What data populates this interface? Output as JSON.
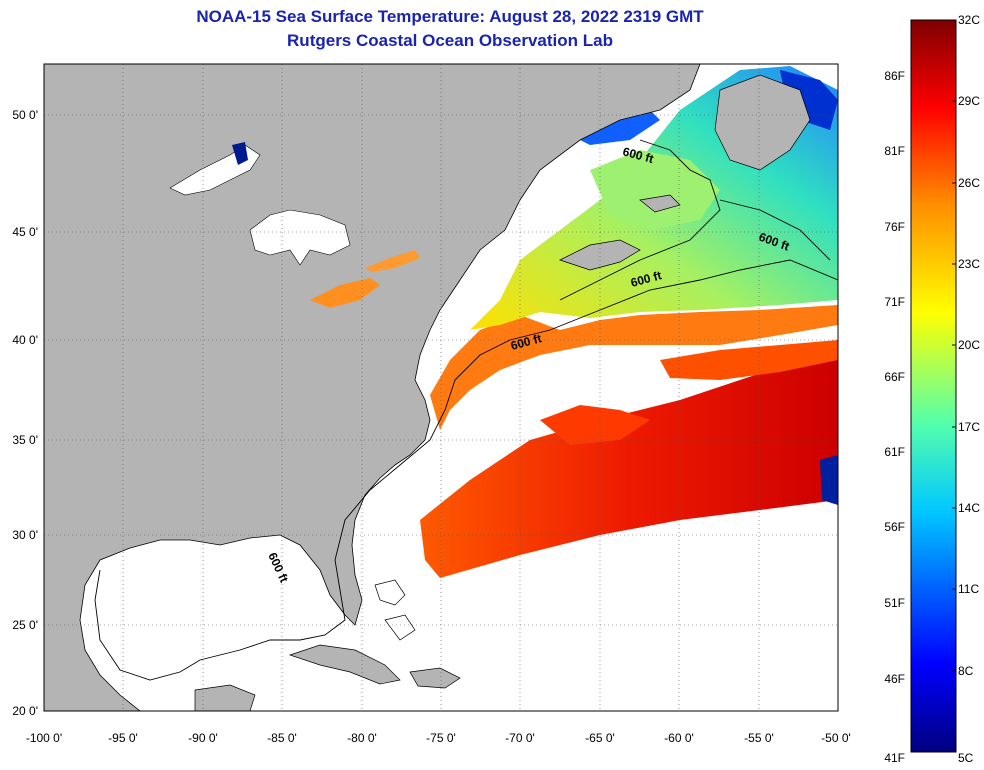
{
  "title": {
    "line1": "NOAA-15 Sea Surface Temperature:  August 28, 2022 2319 GMT",
    "line2": "Rutgers Coastal Ocean Observation Lab"
  },
  "map": {
    "lon_labels": [
      "-100 0'",
      "-95 0'",
      "-90 0'",
      "-85 0'",
      "-80 0'",
      "-75 0'",
      "-70 0'",
      "-65 0'",
      "-60 0'",
      "-55 0'",
      "-50 0'"
    ],
    "lat_labels": [
      "20 0'",
      "25 0'",
      "30 0'",
      "35 0'",
      "40 0'",
      "45 0'",
      "50 0'"
    ],
    "contour_labels": [
      "600 ft",
      "600 ft",
      "600 ft",
      "600 ft",
      "600 ft"
    ],
    "colors": {
      "land": "#b4b4b4",
      "cloud": "#ffffff",
      "border": "#000000"
    }
  },
  "colorbar": {
    "celsius": [
      "32C",
      "29C",
      "26C",
      "23C",
      "20C",
      "17C",
      "14C",
      "11C",
      "8C",
      "5C"
    ],
    "fahrenheit": [
      "86F",
      "81F",
      "76F",
      "71F",
      "66F",
      "61F",
      "56F",
      "51F",
      "46F",
      "41F"
    ]
  }
}
